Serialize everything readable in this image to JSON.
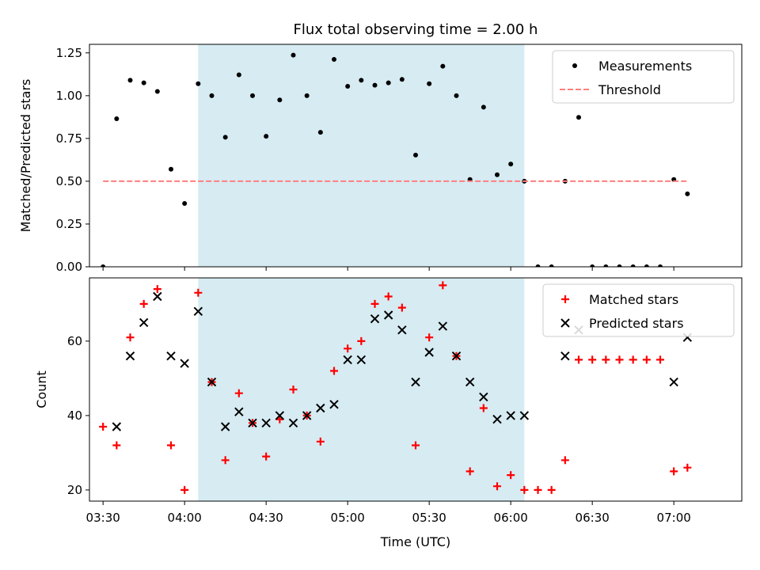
{
  "figure": {
    "title": "Flux total observing time = 2.00 h"
  },
  "chart_data": [
    {
      "type": "scatter",
      "panel": "top",
      "ylabel": "Matched/Predicted stars",
      "xlabel": "",
      "xlim": [
        "03:25",
        "07:25"
      ],
      "ylim": [
        0,
        1.3
      ],
      "x_ticks": [
        "03:30",
        "04:00",
        "04:30",
        "05:00",
        "05:30",
        "06:00",
        "06:30",
        "07:00"
      ],
      "y_ticks": [
        "0.00",
        "0.25",
        "0.50",
        "0.75",
        "1.00",
        "1.25"
      ],
      "shaded_region": {
        "start": "04:05",
        "end": "06:05",
        "color": "#add8e6"
      },
      "legend_position": "upper right",
      "series": [
        {
          "name": "Measurements",
          "marker": "dot",
          "color": "#000000",
          "x": [
            "03:30",
            "03:35",
            "03:40",
            "03:45",
            "03:50",
            "03:55",
            "04:00",
            "04:05",
            "04:10",
            "04:15",
            "04:20",
            "04:25",
            "04:30",
            "04:35",
            "04:40",
            "04:45",
            "04:50",
            "04:55",
            "05:00",
            "05:05",
            "05:10",
            "05:15",
            "05:20",
            "05:25",
            "05:30",
            "05:35",
            "05:40",
            "05:45",
            "05:50",
            "05:55",
            "06:00",
            "06:05",
            "06:10",
            "06:15",
            "06:20",
            "06:25",
            "06:30",
            "06:35",
            "06:40",
            "06:45",
            "06:50",
            "06:55",
            "07:00",
            "07:05"
          ],
          "y": [
            0.0,
            0.865,
            1.09,
            1.075,
            1.025,
            0.57,
            0.37,
            1.07,
            1.0,
            0.757,
            1.122,
            1.0,
            0.763,
            0.975,
            1.237,
            1.0,
            0.786,
            1.212,
            1.055,
            1.09,
            1.061,
            1.075,
            1.095,
            0.653,
            1.07,
            1.172,
            1.0,
            0.51,
            0.933,
            0.538,
            0.6,
            0.5,
            0.0,
            0.0,
            0.5,
            0.873,
            0.0,
            0.0,
            0.0,
            0.0,
            0.0,
            0.0,
            0.51,
            0.426
          ]
        },
        {
          "name": "Threshold",
          "marker": "dashed-line",
          "color": "#ff7f7f",
          "x": [
            "03:30",
            "07:05"
          ],
          "y": [
            0.5,
            0.5
          ]
        }
      ]
    },
    {
      "type": "scatter",
      "panel": "bottom",
      "ylabel": "Count",
      "xlabel": "Time (UTC)",
      "xlim": [
        "03:25",
        "07:25"
      ],
      "ylim": [
        17,
        77
      ],
      "x_ticks": [
        "03:30",
        "04:00",
        "04:30",
        "05:00",
        "05:30",
        "06:00",
        "06:30",
        "07:00"
      ],
      "y_ticks": [
        "20",
        "40",
        "60"
      ],
      "shaded_region": {
        "start": "04:05",
        "end": "06:05",
        "color": "#add8e6"
      },
      "legend_position": "upper right",
      "series": [
        {
          "name": "Matched stars",
          "marker": "plus",
          "color": "#ff0000",
          "x": [
            "03:30",
            "03:35",
            "03:40",
            "03:45",
            "03:50",
            "03:55",
            "04:00",
            "04:05",
            "04:10",
            "04:15",
            "04:20",
            "04:25",
            "04:30",
            "04:35",
            "04:40",
            "04:45",
            "04:50",
            "04:55",
            "05:00",
            "05:05",
            "05:10",
            "05:15",
            "05:20",
            "05:25",
            "05:30",
            "05:35",
            "05:40",
            "05:45",
            "05:50",
            "05:55",
            "06:00",
            "06:05",
            "06:10",
            "06:15",
            "06:20",
            "06:25",
            "06:30",
            "06:35",
            "06:40",
            "06:45",
            "06:50",
            "06:55",
            "07:00",
            "07:05"
          ],
          "y": [
            37,
            32,
            61,
            70,
            74,
            32,
            20,
            73,
            49,
            28,
            46,
            38,
            29,
            39,
            47,
            40,
            33,
            52,
            58,
            60,
            70,
            72,
            69,
            32,
            61,
            75,
            56,
            25,
            42,
            21,
            24,
            20,
            20,
            20,
            28,
            55,
            55,
            55,
            55,
            55,
            55,
            55,
            25,
            26
          ]
        },
        {
          "name": "Predicted stars",
          "marker": "x",
          "color": "#000000",
          "x": [
            "03:35",
            "03:40",
            "03:45",
            "03:50",
            "03:55",
            "04:00",
            "04:05",
            "04:10",
            "04:15",
            "04:20",
            "04:25",
            "04:30",
            "04:35",
            "04:40",
            "04:45",
            "04:50",
            "04:55",
            "05:00",
            "05:05",
            "05:10",
            "05:15",
            "05:20",
            "05:25",
            "05:30",
            "05:35",
            "05:40",
            "05:45",
            "05:50",
            "05:55",
            "06:00",
            "06:05",
            "06:20",
            "06:25",
            "07:00",
            "07:05"
          ],
          "y": [
            37,
            56,
            65,
            72,
            56,
            54,
            68,
            49,
            37,
            41,
            38,
            38,
            40,
            38,
            40,
            42,
            43,
            55,
            55,
            66,
            67,
            63,
            49,
            57,
            64,
            56,
            49,
            45,
            39,
            40,
            40,
            56,
            63,
            49,
            61
          ]
        }
      ]
    }
  ]
}
